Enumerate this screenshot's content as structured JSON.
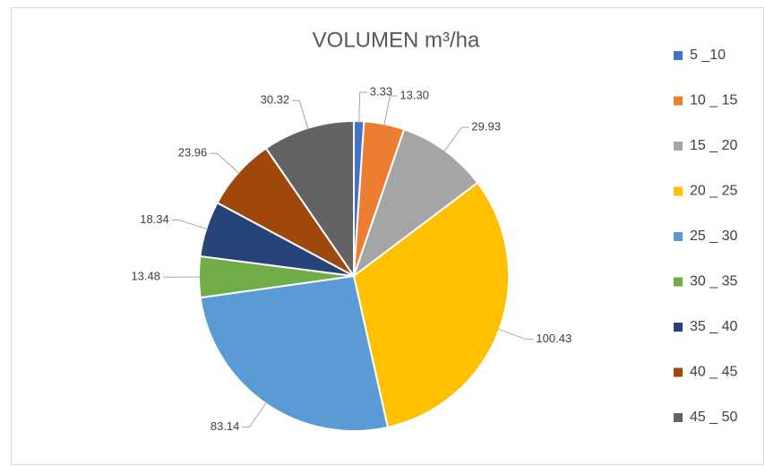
{
  "chart_data": {
    "type": "pie",
    "title": "VOLUMEN m³/ha",
    "categories": [
      "5 _10",
      "10 _ 15",
      "15 _ 20",
      "20 _ 25",
      "25 _ 30",
      "30 _ 35",
      "35 _ 40",
      "40 _ 45",
      "45 _ 50"
    ],
    "values": [
      3.33,
      13.3,
      29.93,
      100.43,
      83.14,
      13.48,
      18.34,
      23.96,
      30.32
    ],
    "value_labels": [
      "3.33",
      "13.30",
      "29.93",
      "100.43",
      "83.14",
      "13.48",
      "18.34",
      "23.96",
      "30.32"
    ],
    "colors": [
      "#4472c4",
      "#ed7d31",
      "#a5a5a5",
      "#ffc000",
      "#5b9bd5",
      "#70ad47",
      "#264478",
      "#9e480e",
      "#636363"
    ],
    "legend": "right"
  }
}
